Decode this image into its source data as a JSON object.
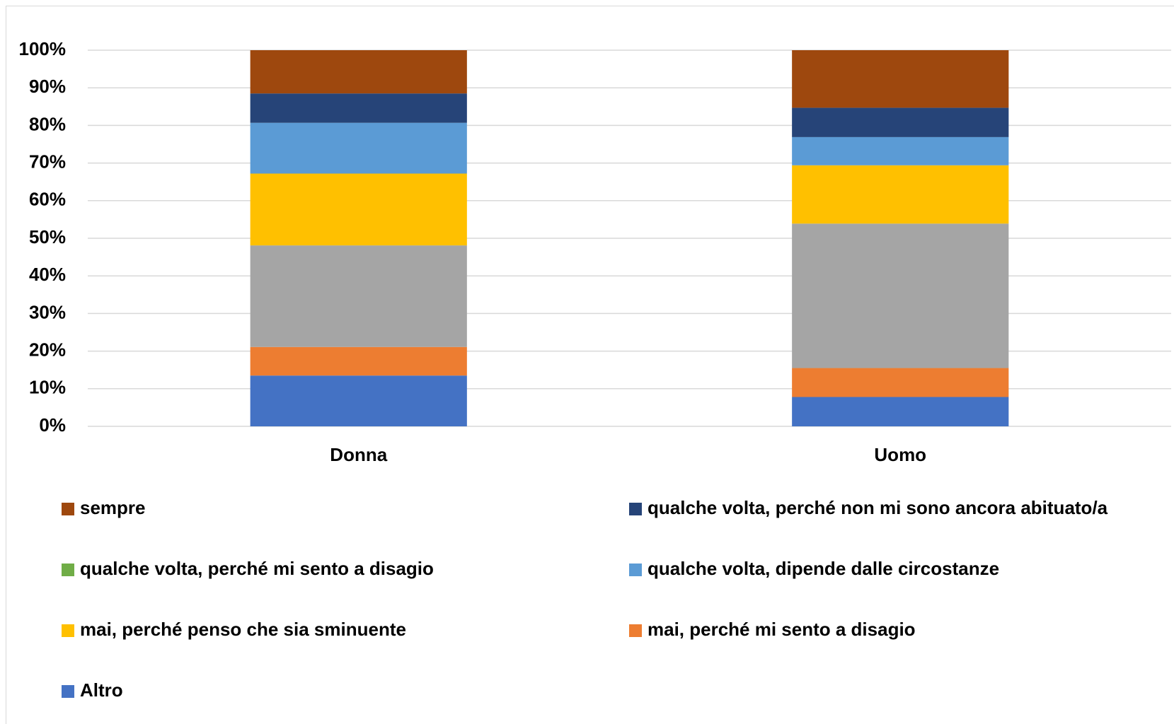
{
  "chart_data": {
    "type": "bar",
    "stacked": true,
    "categories": [
      "Donna",
      "Uomo"
    ],
    "series": [
      {
        "name": "Altro",
        "color": "#4472c4",
        "values": [
          13.5,
          7.8
        ]
      },
      {
        "name": "mai, perché mi sento a disagio",
        "color": "#ed7d31",
        "values": [
          7.6,
          7.7
        ]
      },
      {
        "name": null,
        "color": "#a5a5a5",
        "values": [
          27.0,
          38.4
        ]
      },
      {
        "name": "mai, perché penso che sia sminuente",
        "color": "#ffc000",
        "values": [
          19.1,
          15.5
        ]
      },
      {
        "name": "qualche volta, dipende dalle circostanze",
        "color": "#5b9bd5",
        "values": [
          13.5,
          7.5
        ]
      },
      {
        "name": "qualche volta, perché mi sento a disagio",
        "color": "#70ad47",
        "values": [
          0,
          0
        ]
      },
      {
        "name": "qualche volta, perché non mi sono ancora abituato/a",
        "color": "#264478",
        "values": [
          7.8,
          7.8
        ]
      },
      {
        "name": "sempre",
        "color": "#9e480e",
        "values": [
          11.5,
          15.3
        ]
      }
    ],
    "ylim": [
      0,
      100
    ],
    "yticks": [
      {
        "value": 0,
        "label": "0%"
      },
      {
        "value": 10,
        "label": "10%"
      },
      {
        "value": 20,
        "label": "20%"
      },
      {
        "value": 30,
        "label": "30%"
      },
      {
        "value": 40,
        "label": "40%"
      },
      {
        "value": 50,
        "label": "50%"
      },
      {
        "value": 60,
        "label": "60%"
      },
      {
        "value": 70,
        "label": "70%"
      },
      {
        "value": 80,
        "label": "80%"
      },
      {
        "value": 90,
        "label": "90%"
      },
      {
        "value": 100,
        "label": "100%"
      }
    ],
    "grid": true,
    "legend": "bottom"
  }
}
